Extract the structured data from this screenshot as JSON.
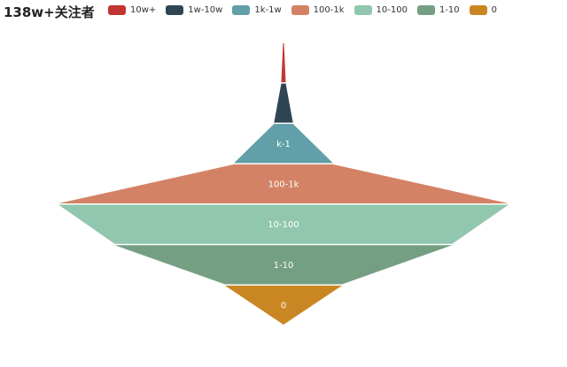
{
  "chart_data": {
    "type": "funnel",
    "title": "138w+关注者",
    "legend_position": "top",
    "categories": [
      "10w+",
      "1w-10w",
      "1k-1w",
      "100-1k",
      "10-100",
      "1-10",
      "0"
    ],
    "colors": [
      "#c23531",
      "#2f4554",
      "#61a0a8",
      "#d48265",
      "#91c7ae",
      "#749f83",
      "#ca8622"
    ],
    "values": [
      0.2,
      1,
      4.2,
      22,
      100,
      75,
      26
    ],
    "segments": [
      {
        "name": "10w+",
        "value": 0.2,
        "label": ""
      },
      {
        "name": "1w-10w",
        "value": 1,
        "label": ""
      },
      {
        "name": "1k-1w",
        "value": 4.2,
        "label": "k-1"
      },
      {
        "name": "100-1k",
        "value": 22,
        "label": "100-1k"
      },
      {
        "name": "10-100",
        "value": 100,
        "label": "10-100"
      },
      {
        "name": "1-10",
        "value": 75,
        "label": "1-10"
      },
      {
        "name": "0",
        "value": 26,
        "label": "0"
      }
    ]
  }
}
